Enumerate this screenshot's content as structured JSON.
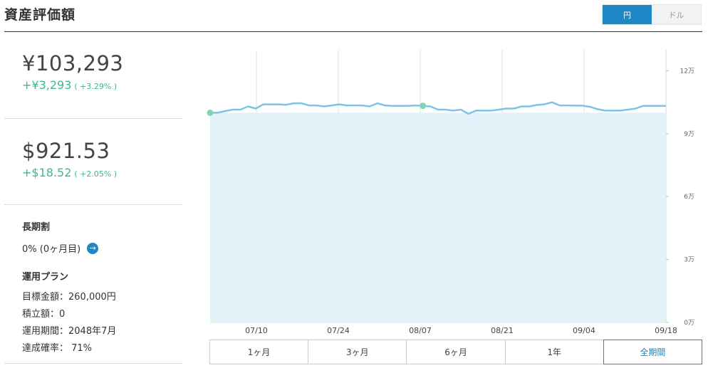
{
  "header": {
    "title": "資産評価額"
  },
  "currency_toggle": {
    "yen": "円",
    "dollar": "ドル",
    "selected": "円"
  },
  "yen_amount": {
    "value": "¥103,293",
    "change": "+¥3,293",
    "change_pct": "( +3.29% )"
  },
  "dollar_amount": {
    "value": "$921.53",
    "change": "+$18.52",
    "change_pct": "( +2.05% )"
  },
  "long_term_discount": {
    "heading": "長期割",
    "value": "0% (0ヶ月目)",
    "arrow_icon": "arrow-right-icon"
  },
  "plan": {
    "heading": "運用プラン",
    "target": "目標金額：260,000円",
    "monthly": "積立額：0",
    "period": "運用期間：2048年7月",
    "probability": "達成確率： 71%"
  },
  "period_buttons": [
    "1ヶ月",
    "3ヶ月",
    "6ヶ月",
    "1年",
    "全期間"
  ],
  "selected_period": "全期間",
  "colors": {
    "accent": "#1e88c7",
    "positive": "#3cb88a",
    "line": "#7dc3e8",
    "fill": "#e3f1f9"
  },
  "chart_data": {
    "type": "area",
    "x_ticks": [
      "07/10",
      "07/24",
      "08/07",
      "08/21",
      "09/04",
      "09/18"
    ],
    "y_ticks": [
      "0万",
      "3万",
      "6万",
      "9万",
      "12万"
    ],
    "ylim": [
      0,
      130000
    ],
    "baseline": 100000,
    "series": [
      {
        "values": [
          100000,
          100000,
          100800,
          101500,
          101500,
          103000,
          102000,
          104000,
          104000,
          104000,
          103800,
          104500,
          104500,
          103500,
          103500,
          103000,
          103500,
          104000,
          103500,
          103500,
          103500,
          103000,
          104500,
          103500,
          103300,
          103300,
          103300,
          103500,
          103293,
          103000,
          101500,
          101500,
          101000,
          101500,
          99500,
          101000,
          101000,
          101000,
          101500,
          102000,
          102000,
          103000,
          103000,
          103700,
          104000,
          105000,
          103500,
          103500,
          103400,
          103400,
          102800,
          101700,
          101000,
          101000,
          101000,
          101500,
          102000,
          103300,
          103300,
          103300,
          103293
        ]
      }
    ],
    "markers": [
      0,
      28
    ],
    "grid": true
  }
}
